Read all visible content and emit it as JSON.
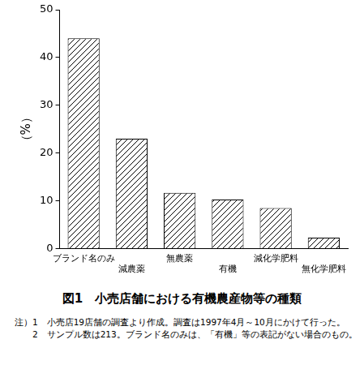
{
  "chart_data": {
    "type": "bar",
    "title": "図1　小売店舗における有機農産物等の種類",
    "y_label": "（%）",
    "categories": [
      "ブランド名のみ",
      "減農薬",
      "無農薬",
      "有機",
      "減化学肥料",
      "無化学肥料"
    ],
    "values": [
      44.0,
      23.0,
      11.7,
      10.3,
      8.5,
      2.3
    ],
    "color": "#000000",
    "ylim": [
      0,
      50
    ],
    "yticks": [
      0,
      10,
      20,
      30,
      40,
      50
    ],
    "grid": false,
    "notes": [
      "注）1　小売店19店舗の調査より作成。調査は1997年4月～10月にかけて行った。",
      "　　2　サンプル数は213。ブランド名のみは、「有機」等の表記がない場合のもの。"
    ]
  }
}
